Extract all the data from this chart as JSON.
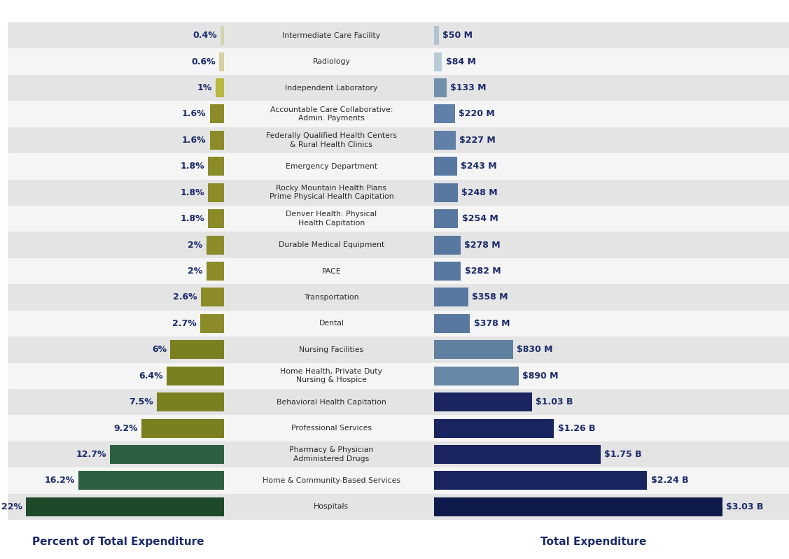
{
  "categories": [
    "Intermediate Care Facility",
    "Radiology",
    "Independent Laboratory",
    "Accountable Care Collaborative:\nAdmin. Payments",
    "Federally Qualified Health Centers\n& Rural Health Clinics",
    "Emergency Department",
    "Rocky Mountain Health Plans\nPrime Physical Health Capitation",
    "Denver Health: Physical\nHealth Capitation",
    "Durable Medical Equipment",
    "PACE",
    "Transportation",
    "Dental",
    "Nursing Facilities",
    "Home Health, Private Duty\nNursing & Hospice",
    "Behavioral Health Capitation",
    "Professional Services",
    "Pharmacy & Physician\nAdministered Drugs",
    "Home & Community-Based Services",
    "Hospitals"
  ],
  "pct_values": [
    0.4,
    0.6,
    1.0,
    1.6,
    1.6,
    1.8,
    1.8,
    1.8,
    2.0,
    2.0,
    2.6,
    2.7,
    6.0,
    6.4,
    7.5,
    9.2,
    12.7,
    16.2,
    22.0
  ],
  "dollar_values": [
    50,
    84,
    133,
    220,
    227,
    243,
    248,
    254,
    278,
    282,
    358,
    378,
    830,
    890,
    1030,
    1260,
    1750,
    2240,
    3030
  ],
  "pct_labels": [
    "0.4%",
    "0.6%",
    "1%",
    "1.6%",
    "1.6%",
    "1.8%",
    "1.8%",
    "1.8%",
    "2%",
    "2%",
    "2.6%",
    "2.7%",
    "6%",
    "6.4%",
    "7.5%",
    "9.2%",
    "12.7%",
    "16.2%",
    "22%"
  ],
  "dollar_labels": [
    "$50 M",
    "$84 M",
    "$133 M",
    "$220 M",
    "$227 M",
    "$243 M",
    "$248 M",
    "$254 M",
    "$278 M",
    "$282 M",
    "$358 M",
    "$378 M",
    "$830 M",
    "$890 M",
    "$1.03 B",
    "$1.26 B",
    "$1.75 B",
    "$2.24 B",
    "$3.03 B"
  ],
  "left_colors": [
    "#d4d4b0",
    "#d4d0a0",
    "#b8b840",
    "#8b8b2a",
    "#8b8b2a",
    "#8b8b2a",
    "#8b8b2a",
    "#8b8b2a",
    "#8b8b2a",
    "#8b8b2a",
    "#8b8b2a",
    "#8b8b2a",
    "#7a8020",
    "#7a8020",
    "#7a8020",
    "#7a8020",
    "#2d6040",
    "#2d6040",
    "#1e4a2a"
  ],
  "right_colors": [
    "#b0c4d0",
    "#b8ccd8",
    "#7090a8",
    "#6080a8",
    "#6080a8",
    "#5878a0",
    "#5878a0",
    "#5878a0",
    "#5878a0",
    "#5878a0",
    "#5878a0",
    "#5878a0",
    "#6080a0",
    "#6888a8",
    "#1a2560",
    "#1a2560",
    "#1a2560",
    "#1a2560",
    "#0e1a4a"
  ],
  "left_xlabel": "Percent of Total Expenditure",
  "right_xlabel": "Total Expenditure",
  "bg_color": "#ffffff",
  "text_color": "#1a2a6a",
  "bar_height": 0.72,
  "row_bg_colors": [
    "#e4e4e4",
    "#f5f5f5",
    "#e4e4e4",
    "#f5f5f5",
    "#e4e4e4",
    "#f5f5f5",
    "#e4e4e4",
    "#f5f5f5",
    "#e4e4e4",
    "#f5f5f5",
    "#e4e4e4",
    "#f5f5f5",
    "#e4e4e4",
    "#f5f5f5",
    "#e4e4e4",
    "#f5f5f5",
    "#e4e4e4",
    "#f5f5f5",
    "#e4e4e4"
  ]
}
